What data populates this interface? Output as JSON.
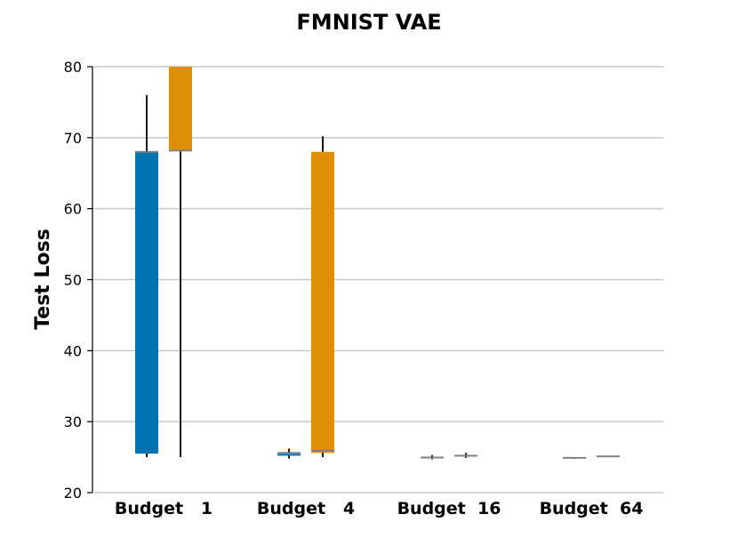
{
  "colors": {
    "series_a": "#0173b2",
    "series_b": "#de8f05",
    "median": "#808080",
    "grid": "#c8c8c8",
    "whisker": "#000000"
  },
  "chart_data": {
    "type": "box",
    "title": "FMNIST VAE",
    "xlabel": "",
    "ylabel": "Test Loss",
    "ylim": [
      20,
      80
    ],
    "yticks": [
      20,
      30,
      40,
      50,
      60,
      70,
      80
    ],
    "grid": "horizontal",
    "categories": [
      "Budget   1",
      "Budget   4",
      "Budget  16",
      "Budget  64"
    ],
    "series": [
      {
        "color": "#0173b2",
        "boxes": [
          {
            "whislo": 25.0,
            "q1": 25.5,
            "med": 68.0,
            "q3": 68.0,
            "whishi": 76.0
          },
          {
            "whislo": 24.8,
            "q1": 25.2,
            "med": 25.5,
            "q3": 25.7,
            "whishi": 26.2
          },
          {
            "whislo": 24.7,
            "q1": 24.9,
            "med": 24.95,
            "q3": 25.0,
            "whishi": 25.3
          },
          {
            "whislo": 24.75,
            "q1": 24.85,
            "med": 24.9,
            "q3": 24.95,
            "whishi": 25.0
          }
        ]
      },
      {
        "color": "#de8f05",
        "boxes": [
          {
            "whislo": 25.0,
            "q1": 68.2,
            "med": 68.2,
            "q3": 80.0,
            "whishi": 80.0
          },
          {
            "whislo": 25.0,
            "q1": 25.6,
            "med": 25.9,
            "q3": 68.0,
            "whishi": 70.2
          },
          {
            "whislo": 24.9,
            "q1": 25.1,
            "med": 25.2,
            "q3": 25.3,
            "whishi": 25.6
          },
          {
            "whislo": 25.0,
            "q1": 25.05,
            "med": 25.1,
            "q3": 25.15,
            "whishi": 25.2
          }
        ]
      }
    ]
  }
}
